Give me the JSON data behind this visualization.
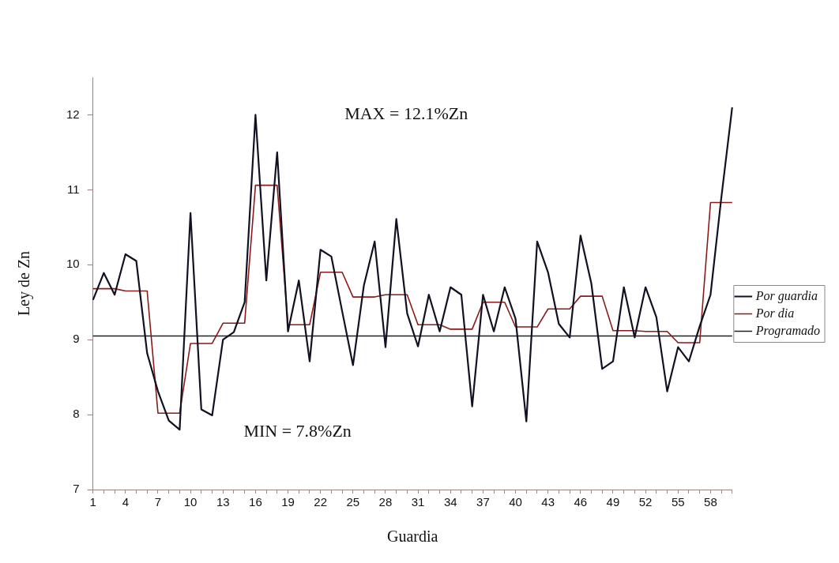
{
  "chart_data": {
    "type": "line",
    "xlabel": "Guardia",
    "ylabel": "Ley de Zn",
    "categories": [
      "1",
      null,
      null,
      "4",
      null,
      null,
      "7",
      null,
      null,
      "10",
      null,
      null,
      "13",
      null,
      null,
      "16",
      null,
      null,
      "19",
      null,
      null,
      "22",
      null,
      null,
      "25",
      null,
      null,
      "28",
      null,
      null,
      "31",
      null,
      null,
      "34",
      null,
      null,
      "37",
      null,
      null,
      "40",
      null,
      null,
      "43",
      null,
      null,
      "46",
      null,
      null,
      "49",
      null,
      null,
      "52",
      null,
      null,
      "55",
      null,
      null,
      "58",
      null,
      null
    ],
    "series": [
      {
        "name": "Por guardia",
        "color": "#111122",
        "values": [
          9.53,
          9.89,
          9.6,
          10.14,
          10.05,
          8.82,
          8.31,
          7.92,
          7.8,
          10.69,
          8.07,
          7.99,
          9.0,
          9.1,
          9.5,
          12.0,
          9.79,
          11.5,
          9.11,
          9.79,
          8.71,
          10.2,
          10.11,
          9.38,
          8.66,
          9.72,
          10.31,
          8.9,
          10.61,
          9.35,
          8.91,
          9.6,
          9.11,
          9.7,
          9.6,
          8.11,
          9.6,
          9.11,
          9.7,
          9.28,
          7.91,
          10.31,
          9.9,
          9.21,
          9.03,
          10.39,
          9.75,
          8.61,
          8.71,
          9.7,
          9.03,
          9.7,
          9.3,
          8.31,
          8.9,
          8.71,
          9.18,
          9.6,
          10.9,
          12.1
        ]
      },
      {
        "name": "Por dia",
        "color": "#8b1a1a",
        "values": [
          9.68,
          9.68,
          9.68,
          9.65,
          9.65,
          9.65,
          8.02,
          8.02,
          8.02,
          8.95,
          8.95,
          8.95,
          9.22,
          9.22,
          9.22,
          11.06,
          11.06,
          11.06,
          9.2,
          9.2,
          9.2,
          9.9,
          9.9,
          9.9,
          9.57,
          9.57,
          9.57,
          9.6,
          9.6,
          9.6,
          9.2,
          9.2,
          9.2,
          9.14,
          9.14,
          9.14,
          9.5,
          9.5,
          9.5,
          9.17,
          9.17,
          9.17,
          9.41,
          9.41,
          9.41,
          9.58,
          9.58,
          9.58,
          9.12,
          9.12,
          9.12,
          9.11,
          9.11,
          9.11,
          8.96,
          8.96,
          8.96,
          10.83,
          10.83,
          10.83
        ]
      },
      {
        "name": "Programado",
        "color": "#222222",
        "values": [
          9.05,
          9.05,
          9.05,
          9.05,
          9.05,
          9.05,
          9.05,
          9.05,
          9.05,
          9.05,
          9.05,
          9.05,
          9.05,
          9.05,
          9.05,
          9.05,
          9.05,
          9.05,
          9.05,
          9.05,
          9.05,
          9.05,
          9.05,
          9.05,
          9.05,
          9.05,
          9.05,
          9.05,
          9.05,
          9.05,
          9.05,
          9.05,
          9.05,
          9.05,
          9.05,
          9.05,
          9.05,
          9.05,
          9.05,
          9.05,
          9.05,
          9.05,
          9.05,
          9.05,
          9.05,
          9.05,
          9.05,
          9.05,
          9.05,
          9.05,
          9.05,
          9.05,
          9.05,
          9.05,
          9.05,
          9.05,
          9.05,
          9.05,
          9.05,
          9.05
        ]
      }
    ],
    "ylim": [
      7,
      12.5
    ],
    "yticks": [
      7,
      8,
      9,
      10,
      11,
      12
    ],
    "grid": false,
    "legend": "right",
    "marker": "none",
    "line_style": "solid",
    "annotations": [
      "MAX = 12.1%Zn",
      "MIN = 7.8%Zn"
    ]
  }
}
